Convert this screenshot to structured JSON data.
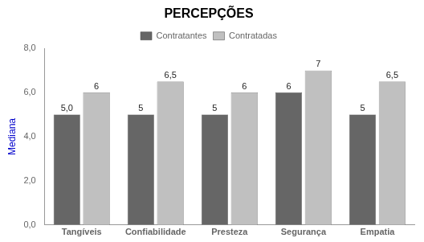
{
  "chart_data": {
    "type": "bar",
    "title": "PERCEPÇÕES",
    "categories": [
      "Tangíveis",
      "Confiabilidade",
      "Presteza",
      "Segurança",
      "Empatia"
    ],
    "series": [
      {
        "name": "Contratantes",
        "color": "#666666",
        "values": [
          5.0,
          5,
          5,
          6,
          5
        ],
        "value_labels": [
          "5,0",
          "5",
          "5",
          "6",
          "5"
        ]
      },
      {
        "name": "Contratadas",
        "color": "#c0c0c0",
        "values": [
          6,
          6.5,
          6,
          7,
          6.5
        ],
        "value_labels": [
          "6",
          "6,5",
          "6",
          "7",
          "6,5"
        ]
      }
    ],
    "ylabel": "Mediana",
    "ylim": [
      0,
      8.0
    ],
    "yticks": [
      {
        "value": 0.0,
        "label": "0,0"
      },
      {
        "value": 2.0,
        "label": "2,0"
      },
      {
        "value": 4.0,
        "label": "4,0"
      },
      {
        "value": 6.0,
        "label": "6,0"
      },
      {
        "value": 8.0,
        "label": "8,0"
      }
    ],
    "grid": false,
    "legend": "top",
    "data_labels": true
  }
}
